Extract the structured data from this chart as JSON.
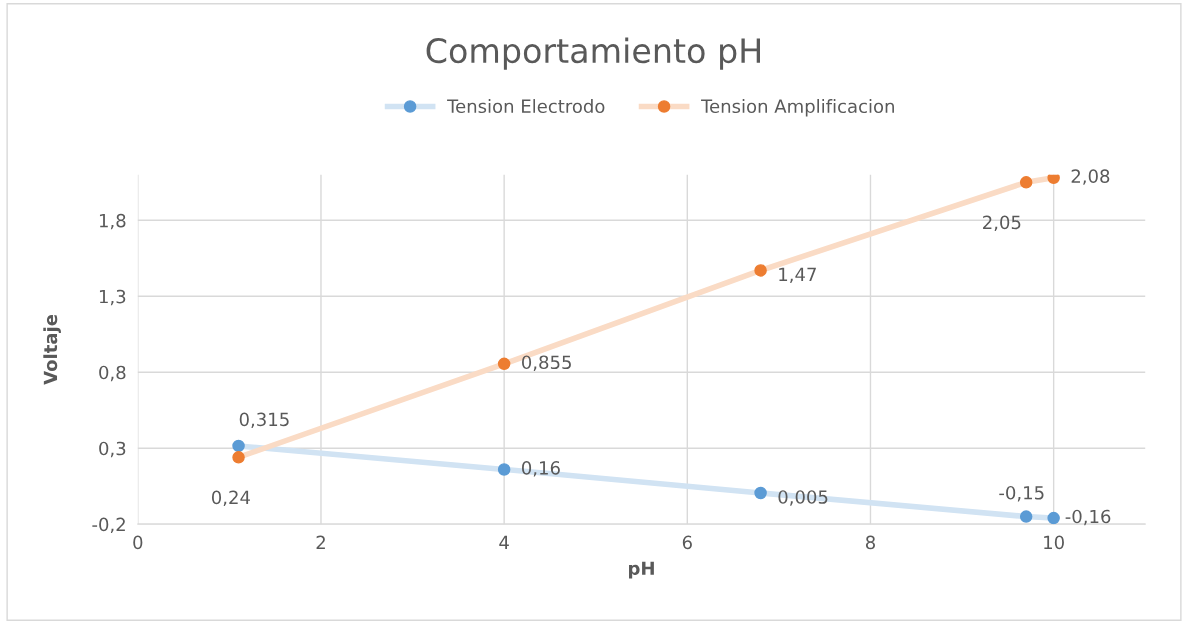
{
  "chart_data": {
    "type": "line",
    "title": "Comportamiento pH",
    "xlabel": "pH",
    "ylabel": "Voltaje",
    "x": [
      1.1,
      4.0,
      6.8,
      9.7,
      10.0
    ],
    "series": [
      {
        "name": "Tension Electrodo",
        "color": "#5b9bd5",
        "values": [
          0.315,
          0.16,
          0.005,
          -0.15,
          -0.16
        ],
        "value_labels": [
          "0,315",
          "0,16",
          "0,005",
          "-0,15",
          "-0,16"
        ]
      },
      {
        "name": "Tension Amplificacion",
        "color": "#ed7d31",
        "values": [
          0.24,
          0.855,
          1.47,
          2.05,
          2.08
        ],
        "value_labels": [
          "0,24",
          "0,855",
          "1,47",
          "2,05",
          "2,08"
        ]
      }
    ],
    "xlim": [
      0,
      11
    ],
    "xticks": [
      0,
      2,
      4,
      6,
      8,
      10
    ],
    "ylim": [
      -0.2,
      2.1
    ],
    "yticks": [
      {
        "value": -0.2,
        "label": "-0,2"
      },
      {
        "value": 0.3,
        "label": "0,3"
      },
      {
        "value": 0.8,
        "label": "0,8"
      },
      {
        "value": 1.3,
        "label": "1,3"
      },
      {
        "value": 1.8,
        "label": "1,8"
      }
    ],
    "grid": true,
    "legend": "top",
    "marker": "circle"
  }
}
